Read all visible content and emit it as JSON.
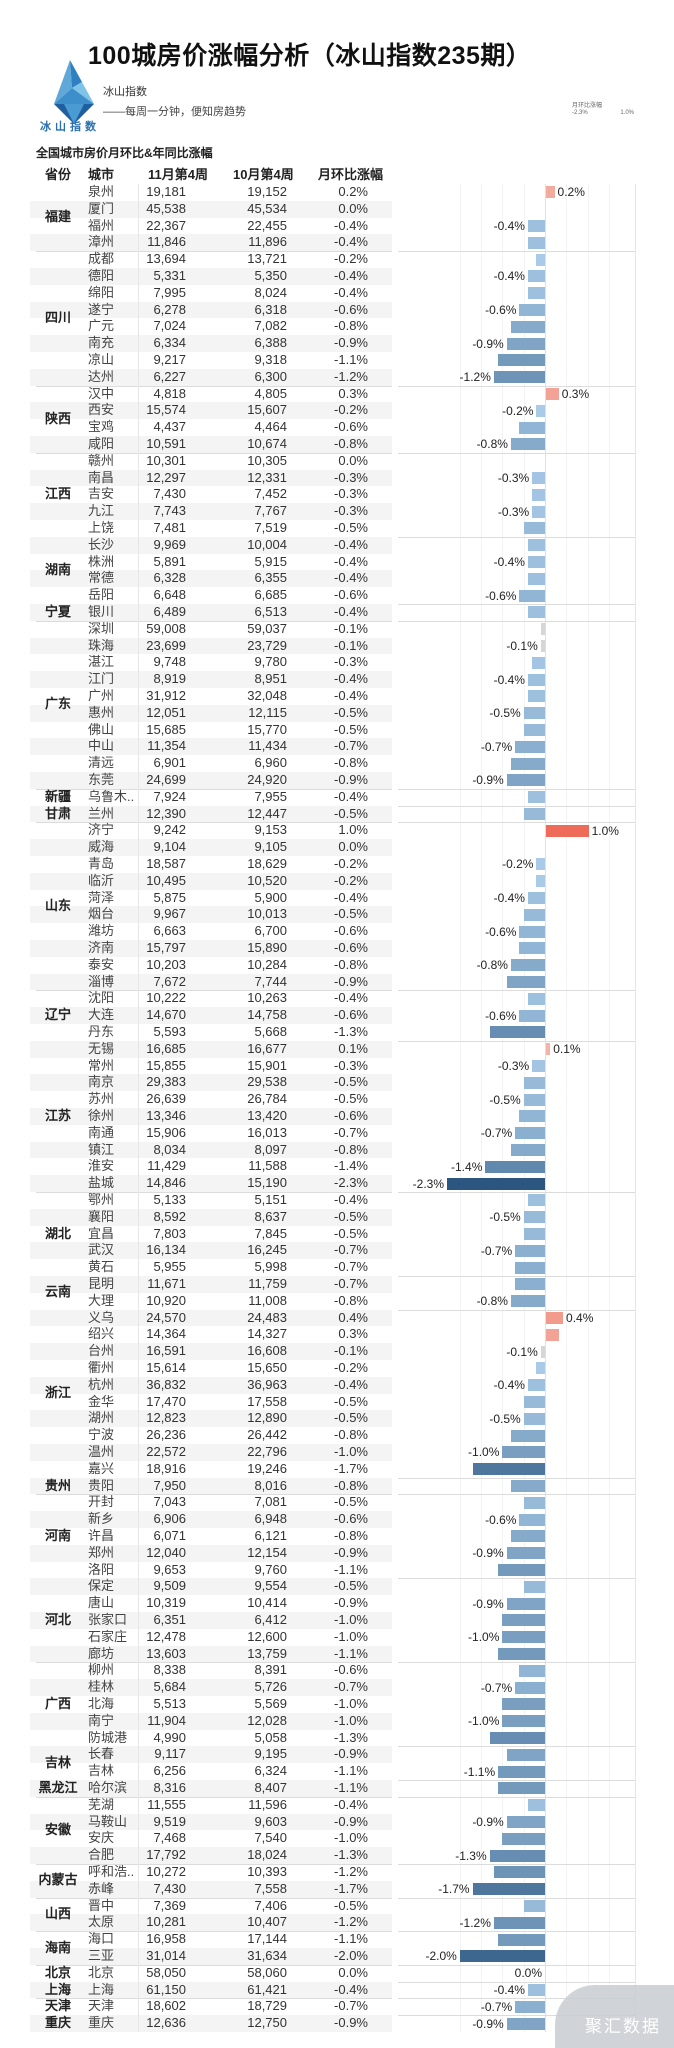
{
  "header": {
    "title": "100城房价涨幅分析（冰山指数235期）",
    "brand": "冰山指数",
    "slogan": "——每周一分钟，便知房趋势",
    "logo_text": "冰山指数",
    "subtitle": "全国城市房价月环比&年同比涨幅",
    "legend": {
      "title": "月环比涨幅",
      "min": "-2.3%",
      "max": "1.0%"
    }
  },
  "columns": {
    "province": "省份",
    "city": "城市",
    "week_nov": "11月第4周",
    "week_oct": "10月第4周",
    "change": "月环比涨幅"
  },
  "colors": {
    "negative_dark": "#2b5680",
    "negative_light": "#a9cbe8",
    "neutral": "#d6d6d6",
    "positive_light": "#f4b3a6",
    "positive_dark": "#ee6b5a"
  },
  "watermark": "聚汇数据",
  "groups": [
    {
      "province": "福建",
      "rows": [
        {
          "city": "泉州",
          "nov": "19,181",
          "oct": "19,152",
          "change": "0.2%",
          "label": true
        },
        {
          "city": "厦门",
          "nov": "45,538",
          "oct": "45,534",
          "change": "0.0%",
          "label": false
        },
        {
          "city": "福州",
          "nov": "22,367",
          "oct": "22,455",
          "change": "-0.4%",
          "label": true
        },
        {
          "city": "漳州",
          "nov": "11,846",
          "oct": "11,896",
          "change": "-0.4%",
          "label": false
        }
      ]
    },
    {
      "province": "四川",
      "rows": [
        {
          "city": "成都",
          "nov": "13,694",
          "oct": "13,721",
          "change": "-0.2%",
          "label": false
        },
        {
          "city": "德阳",
          "nov": "5,331",
          "oct": "5,350",
          "change": "-0.4%",
          "label": true
        },
        {
          "city": "绵阳",
          "nov": "7,995",
          "oct": "8,024",
          "change": "-0.4%",
          "label": false
        },
        {
          "city": "遂宁",
          "nov": "6,278",
          "oct": "6,318",
          "change": "-0.6%",
          "label": true
        },
        {
          "city": "广元",
          "nov": "7,024",
          "oct": "7,082",
          "change": "-0.8%",
          "label": false
        },
        {
          "city": "南充",
          "nov": "6,334",
          "oct": "6,388",
          "change": "-0.9%",
          "label": true
        },
        {
          "city": "凉山",
          "nov": "9,217",
          "oct": "9,318",
          "change": "-1.1%",
          "label": false
        },
        {
          "city": "达州",
          "nov": "6,227",
          "oct": "6,300",
          "change": "-1.2%",
          "label": true
        }
      ]
    },
    {
      "province": "陕西",
      "rows": [
        {
          "city": "汉中",
          "nov": "4,818",
          "oct": "4,805",
          "change": "0.3%",
          "label": true
        },
        {
          "city": "西安",
          "nov": "15,574",
          "oct": "15,607",
          "change": "-0.2%",
          "label": true
        },
        {
          "city": "宝鸡",
          "nov": "4,437",
          "oct": "4,464",
          "change": "-0.6%",
          "label": false
        },
        {
          "city": "咸阳",
          "nov": "10,591",
          "oct": "10,674",
          "change": "-0.8%",
          "label": true
        }
      ]
    },
    {
      "province": "江西",
      "rows": [
        {
          "city": "赣州",
          "nov": "10,301",
          "oct": "10,305",
          "change": "0.0%",
          "label": false
        },
        {
          "city": "南昌",
          "nov": "12,297",
          "oct": "12,331",
          "change": "-0.3%",
          "label": true
        },
        {
          "city": "吉安",
          "nov": "7,430",
          "oct": "7,452",
          "change": "-0.3%",
          "label": false
        },
        {
          "city": "九江",
          "nov": "7,743",
          "oct": "7,767",
          "change": "-0.3%",
          "label": true
        },
        {
          "city": "上饶",
          "nov": "7,481",
          "oct": "7,519",
          "change": "-0.5%",
          "label": false
        }
      ]
    },
    {
      "province": "湖南",
      "rows": [
        {
          "city": "长沙",
          "nov": "9,969",
          "oct": "10,004",
          "change": "-0.4%",
          "label": false
        },
        {
          "city": "株洲",
          "nov": "5,891",
          "oct": "5,915",
          "change": "-0.4%",
          "label": true
        },
        {
          "city": "常德",
          "nov": "6,328",
          "oct": "6,355",
          "change": "-0.4%",
          "label": false
        },
        {
          "city": "岳阳",
          "nov": "6,648",
          "oct": "6,685",
          "change": "-0.6%",
          "label": true
        }
      ]
    },
    {
      "province": "宁夏",
      "rows": [
        {
          "city": "银川",
          "nov": "6,489",
          "oct": "6,513",
          "change": "-0.4%",
          "label": false
        }
      ]
    },
    {
      "province": "广东",
      "rows": [
        {
          "city": "深圳",
          "nov": "59,008",
          "oct": "59,037",
          "change": "-0.1%",
          "label": false
        },
        {
          "city": "珠海",
          "nov": "23,699",
          "oct": "23,729",
          "change": "-0.1%",
          "label": true
        },
        {
          "city": "湛江",
          "nov": "9,748",
          "oct": "9,780",
          "change": "-0.3%",
          "label": false
        },
        {
          "city": "江门",
          "nov": "8,919",
          "oct": "8,951",
          "change": "-0.4%",
          "label": true
        },
        {
          "city": "广州",
          "nov": "31,912",
          "oct": "32,048",
          "change": "-0.4%",
          "label": false
        },
        {
          "city": "惠州",
          "nov": "12,051",
          "oct": "12,115",
          "change": "-0.5%",
          "label": true
        },
        {
          "city": "佛山",
          "nov": "15,685",
          "oct": "15,770",
          "change": "-0.5%",
          "label": false
        },
        {
          "city": "中山",
          "nov": "11,354",
          "oct": "11,434",
          "change": "-0.7%",
          "label": true
        },
        {
          "city": "清远",
          "nov": "6,901",
          "oct": "6,960",
          "change": "-0.8%",
          "label": false
        },
        {
          "city": "东莞",
          "nov": "24,699",
          "oct": "24,920",
          "change": "-0.9%",
          "label": true
        }
      ]
    },
    {
      "province": "新疆",
      "rows": [
        {
          "city": "乌鲁木..",
          "nov": "7,924",
          "oct": "7,955",
          "change": "-0.4%",
          "label": false
        }
      ]
    },
    {
      "province": "甘肃",
      "rows": [
        {
          "city": "兰州",
          "nov": "12,390",
          "oct": "12,447",
          "change": "-0.5%",
          "label": false
        }
      ]
    },
    {
      "province": "山东",
      "rows": [
        {
          "city": "济宁",
          "nov": "9,242",
          "oct": "9,153",
          "change": "1.0%",
          "label": true
        },
        {
          "city": "威海",
          "nov": "9,104",
          "oct": "9,105",
          "change": "0.0%",
          "label": false
        },
        {
          "city": "青岛",
          "nov": "18,587",
          "oct": "18,629",
          "change": "-0.2%",
          "label": true
        },
        {
          "city": "临沂",
          "nov": "10,495",
          "oct": "10,520",
          "change": "-0.2%",
          "label": false
        },
        {
          "city": "菏泽",
          "nov": "5,875",
          "oct": "5,900",
          "change": "-0.4%",
          "label": true
        },
        {
          "city": "烟台",
          "nov": "9,967",
          "oct": "10,013",
          "change": "-0.5%",
          "label": false
        },
        {
          "city": "潍坊",
          "nov": "6,663",
          "oct": "6,700",
          "change": "-0.6%",
          "label": true
        },
        {
          "city": "济南",
          "nov": "15,797",
          "oct": "15,890",
          "change": "-0.6%",
          "label": false
        },
        {
          "city": "泰安",
          "nov": "10,203",
          "oct": "10,284",
          "change": "-0.8%",
          "label": true
        },
        {
          "city": "淄博",
          "nov": "7,672",
          "oct": "7,744",
          "change": "-0.9%",
          "label": false
        }
      ]
    },
    {
      "province": "辽宁",
      "rows": [
        {
          "city": "沈阳",
          "nov": "10,222",
          "oct": "10,263",
          "change": "-0.4%",
          "label": false
        },
        {
          "city": "大连",
          "nov": "14,670",
          "oct": "14,758",
          "change": "-0.6%",
          "label": true
        },
        {
          "city": "丹东",
          "nov": "5,593",
          "oct": "5,668",
          "change": "-1.3%",
          "label": false
        }
      ]
    },
    {
      "province": "江苏",
      "rows": [
        {
          "city": "无锡",
          "nov": "16,685",
          "oct": "16,677",
          "change": "0.1%",
          "label": true
        },
        {
          "city": "常州",
          "nov": "15,855",
          "oct": "15,901",
          "change": "-0.3%",
          "label": true
        },
        {
          "city": "南京",
          "nov": "29,383",
          "oct": "29,538",
          "change": "-0.5%",
          "label": false
        },
        {
          "city": "苏州",
          "nov": "26,639",
          "oct": "26,784",
          "change": "-0.5%",
          "label": true
        },
        {
          "city": "徐州",
          "nov": "13,346",
          "oct": "13,420",
          "change": "-0.6%",
          "label": false
        },
        {
          "city": "南通",
          "nov": "15,906",
          "oct": "16,013",
          "change": "-0.7%",
          "label": true
        },
        {
          "city": "镇江",
          "nov": "8,034",
          "oct": "8,097",
          "change": "-0.8%",
          "label": false
        },
        {
          "city": "淮安",
          "nov": "11,429",
          "oct": "11,588",
          "change": "-1.4%",
          "label": true
        },
        {
          "city": "盐城",
          "nov": "14,846",
          "oct": "15,190",
          "change": "-2.3%",
          "label": true
        }
      ]
    },
    {
      "province": "湖北",
      "rows": [
        {
          "city": "鄂州",
          "nov": "5,133",
          "oct": "5,151",
          "change": "-0.4%",
          "label": false
        },
        {
          "city": "襄阳",
          "nov": "8,592",
          "oct": "8,637",
          "change": "-0.5%",
          "label": true
        },
        {
          "city": "宜昌",
          "nov": "7,803",
          "oct": "7,845",
          "change": "-0.5%",
          "label": false
        },
        {
          "city": "武汉",
          "nov": "16,134",
          "oct": "16,245",
          "change": "-0.7%",
          "label": true
        },
        {
          "city": "黄石",
          "nov": "5,955",
          "oct": "5,998",
          "change": "-0.7%",
          "label": false
        }
      ]
    },
    {
      "province": "云南",
      "rows": [
        {
          "city": "昆明",
          "nov": "11,671",
          "oct": "11,759",
          "change": "-0.7%",
          "label": false
        },
        {
          "city": "大理",
          "nov": "10,920",
          "oct": "11,008",
          "change": "-0.8%",
          "label": true
        }
      ]
    },
    {
      "province": "浙江",
      "rows": [
        {
          "city": "义乌",
          "nov": "24,570",
          "oct": "24,483",
          "change": "0.4%",
          "label": true
        },
        {
          "city": "绍兴",
          "nov": "14,364",
          "oct": "14,327",
          "change": "0.3%",
          "label": false
        },
        {
          "city": "台州",
          "nov": "16,591",
          "oct": "16,608",
          "change": "-0.1%",
          "label": true
        },
        {
          "city": "衢州",
          "nov": "15,614",
          "oct": "15,650",
          "change": "-0.2%",
          "label": false
        },
        {
          "city": "杭州",
          "nov": "36,832",
          "oct": "36,963",
          "change": "-0.4%",
          "label": true
        },
        {
          "city": "金华",
          "nov": "17,470",
          "oct": "17,558",
          "change": "-0.5%",
          "label": false
        },
        {
          "city": "湖州",
          "nov": "12,823",
          "oct": "12,890",
          "change": "-0.5%",
          "label": true
        },
        {
          "city": "宁波",
          "nov": "26,236",
          "oct": "26,442",
          "change": "-0.8%",
          "label": false
        },
        {
          "city": "温州",
          "nov": "22,572",
          "oct": "22,796",
          "change": "-1.0%",
          "label": true
        },
        {
          "city": "嘉兴",
          "nov": "18,916",
          "oct": "19,246",
          "change": "-1.7%",
          "label": false
        }
      ]
    },
    {
      "province": "贵州",
      "rows": [
        {
          "city": "贵阳",
          "nov": "7,950",
          "oct": "8,016",
          "change": "-0.8%",
          "label": false
        }
      ]
    },
    {
      "province": "河南",
      "rows": [
        {
          "city": "开封",
          "nov": "7,043",
          "oct": "7,081",
          "change": "-0.5%",
          "label": false
        },
        {
          "city": "新乡",
          "nov": "6,906",
          "oct": "6,948",
          "change": "-0.6%",
          "label": true
        },
        {
          "city": "许昌",
          "nov": "6,071",
          "oct": "6,121",
          "change": "-0.8%",
          "label": false
        },
        {
          "city": "郑州",
          "nov": "12,040",
          "oct": "12,154",
          "change": "-0.9%",
          "label": true
        },
        {
          "city": "洛阳",
          "nov": "9,653",
          "oct": "9,760",
          "change": "-1.1%",
          "label": false
        }
      ]
    },
    {
      "province": "河北",
      "rows": [
        {
          "city": "保定",
          "nov": "9,509",
          "oct": "9,554",
          "change": "-0.5%",
          "label": false
        },
        {
          "city": "唐山",
          "nov": "10,319",
          "oct": "10,414",
          "change": "-0.9%",
          "label": true
        },
        {
          "city": "张家口",
          "nov": "6,351",
          "oct": "6,412",
          "change": "-1.0%",
          "label": false
        },
        {
          "city": "石家庄",
          "nov": "12,478",
          "oct": "12,600",
          "change": "-1.0%",
          "label": true
        },
        {
          "city": "廊坊",
          "nov": "13,603",
          "oct": "13,759",
          "change": "-1.1%",
          "label": false
        }
      ]
    },
    {
      "province": "广西",
      "rows": [
        {
          "city": "柳州",
          "nov": "8,338",
          "oct": "8,391",
          "change": "-0.6%",
          "label": false
        },
        {
          "city": "桂林",
          "nov": "5,684",
          "oct": "5,726",
          "change": "-0.7%",
          "label": true
        },
        {
          "city": "北海",
          "nov": "5,513",
          "oct": "5,569",
          "change": "-1.0%",
          "label": false
        },
        {
          "city": "南宁",
          "nov": "11,904",
          "oct": "12,028",
          "change": "-1.0%",
          "label": true
        },
        {
          "city": "防城港",
          "nov": "4,990",
          "oct": "5,058",
          "change": "-1.3%",
          "label": false
        }
      ]
    },
    {
      "province": "吉林",
      "rows": [
        {
          "city": "长春",
          "nov": "9,117",
          "oct": "9,195",
          "change": "-0.9%",
          "label": false
        },
        {
          "city": "吉林",
          "nov": "6,256",
          "oct": "6,324",
          "change": "-1.1%",
          "label": true
        }
      ]
    },
    {
      "province": "黑龙江",
      "rows": [
        {
          "city": "哈尔滨",
          "nov": "8,316",
          "oct": "8,407",
          "change": "-1.1%",
          "label": false
        }
      ]
    },
    {
      "province": "安徽",
      "rows": [
        {
          "city": "芜湖",
          "nov": "11,555",
          "oct": "11,596",
          "change": "-0.4%",
          "label": false
        },
        {
          "city": "马鞍山",
          "nov": "9,519",
          "oct": "9,603",
          "change": "-0.9%",
          "label": true
        },
        {
          "city": "安庆",
          "nov": "7,468",
          "oct": "7,540",
          "change": "-1.0%",
          "label": false
        },
        {
          "city": "合肥",
          "nov": "17,792",
          "oct": "18,024",
          "change": "-1.3%",
          "label": true
        }
      ]
    },
    {
      "province": "内蒙古",
      "rows": [
        {
          "city": "呼和浩..",
          "nov": "10,272",
          "oct": "10,393",
          "change": "-1.2%",
          "label": false
        },
        {
          "city": "赤峰",
          "nov": "7,430",
          "oct": "7,558",
          "change": "-1.7%",
          "label": true
        }
      ]
    },
    {
      "province": "山西",
      "rows": [
        {
          "city": "晋中",
          "nov": "7,369",
          "oct": "7,406",
          "change": "-0.5%",
          "label": false
        },
        {
          "city": "太原",
          "nov": "10,281",
          "oct": "10,407",
          "change": "-1.2%",
          "label": true
        }
      ]
    },
    {
      "province": "海南",
      "rows": [
        {
          "city": "海口",
          "nov": "16,958",
          "oct": "17,144",
          "change": "-1.1%",
          "label": false
        },
        {
          "city": "三亚",
          "nov": "31,014",
          "oct": "31,634",
          "change": "-2.0%",
          "label": true
        }
      ]
    },
    {
      "province": "北京",
      "rows": [
        {
          "city": "北京",
          "nov": "58,050",
          "oct": "58,060",
          "change": "0.0%",
          "label": true
        }
      ]
    },
    {
      "province": "上海",
      "rows": [
        {
          "city": "上海",
          "nov": "61,150",
          "oct": "61,421",
          "change": "-0.4%",
          "label": true
        }
      ]
    },
    {
      "province": "天津",
      "rows": [
        {
          "city": "天津",
          "nov": "18,602",
          "oct": "18,729",
          "change": "-0.7%",
          "label": true
        }
      ]
    },
    {
      "province": "重庆",
      "rows": [
        {
          "city": "重庆",
          "nov": "12,636",
          "oct": "12,750",
          "change": "-0.9%",
          "label": true
        }
      ]
    }
  ]
}
